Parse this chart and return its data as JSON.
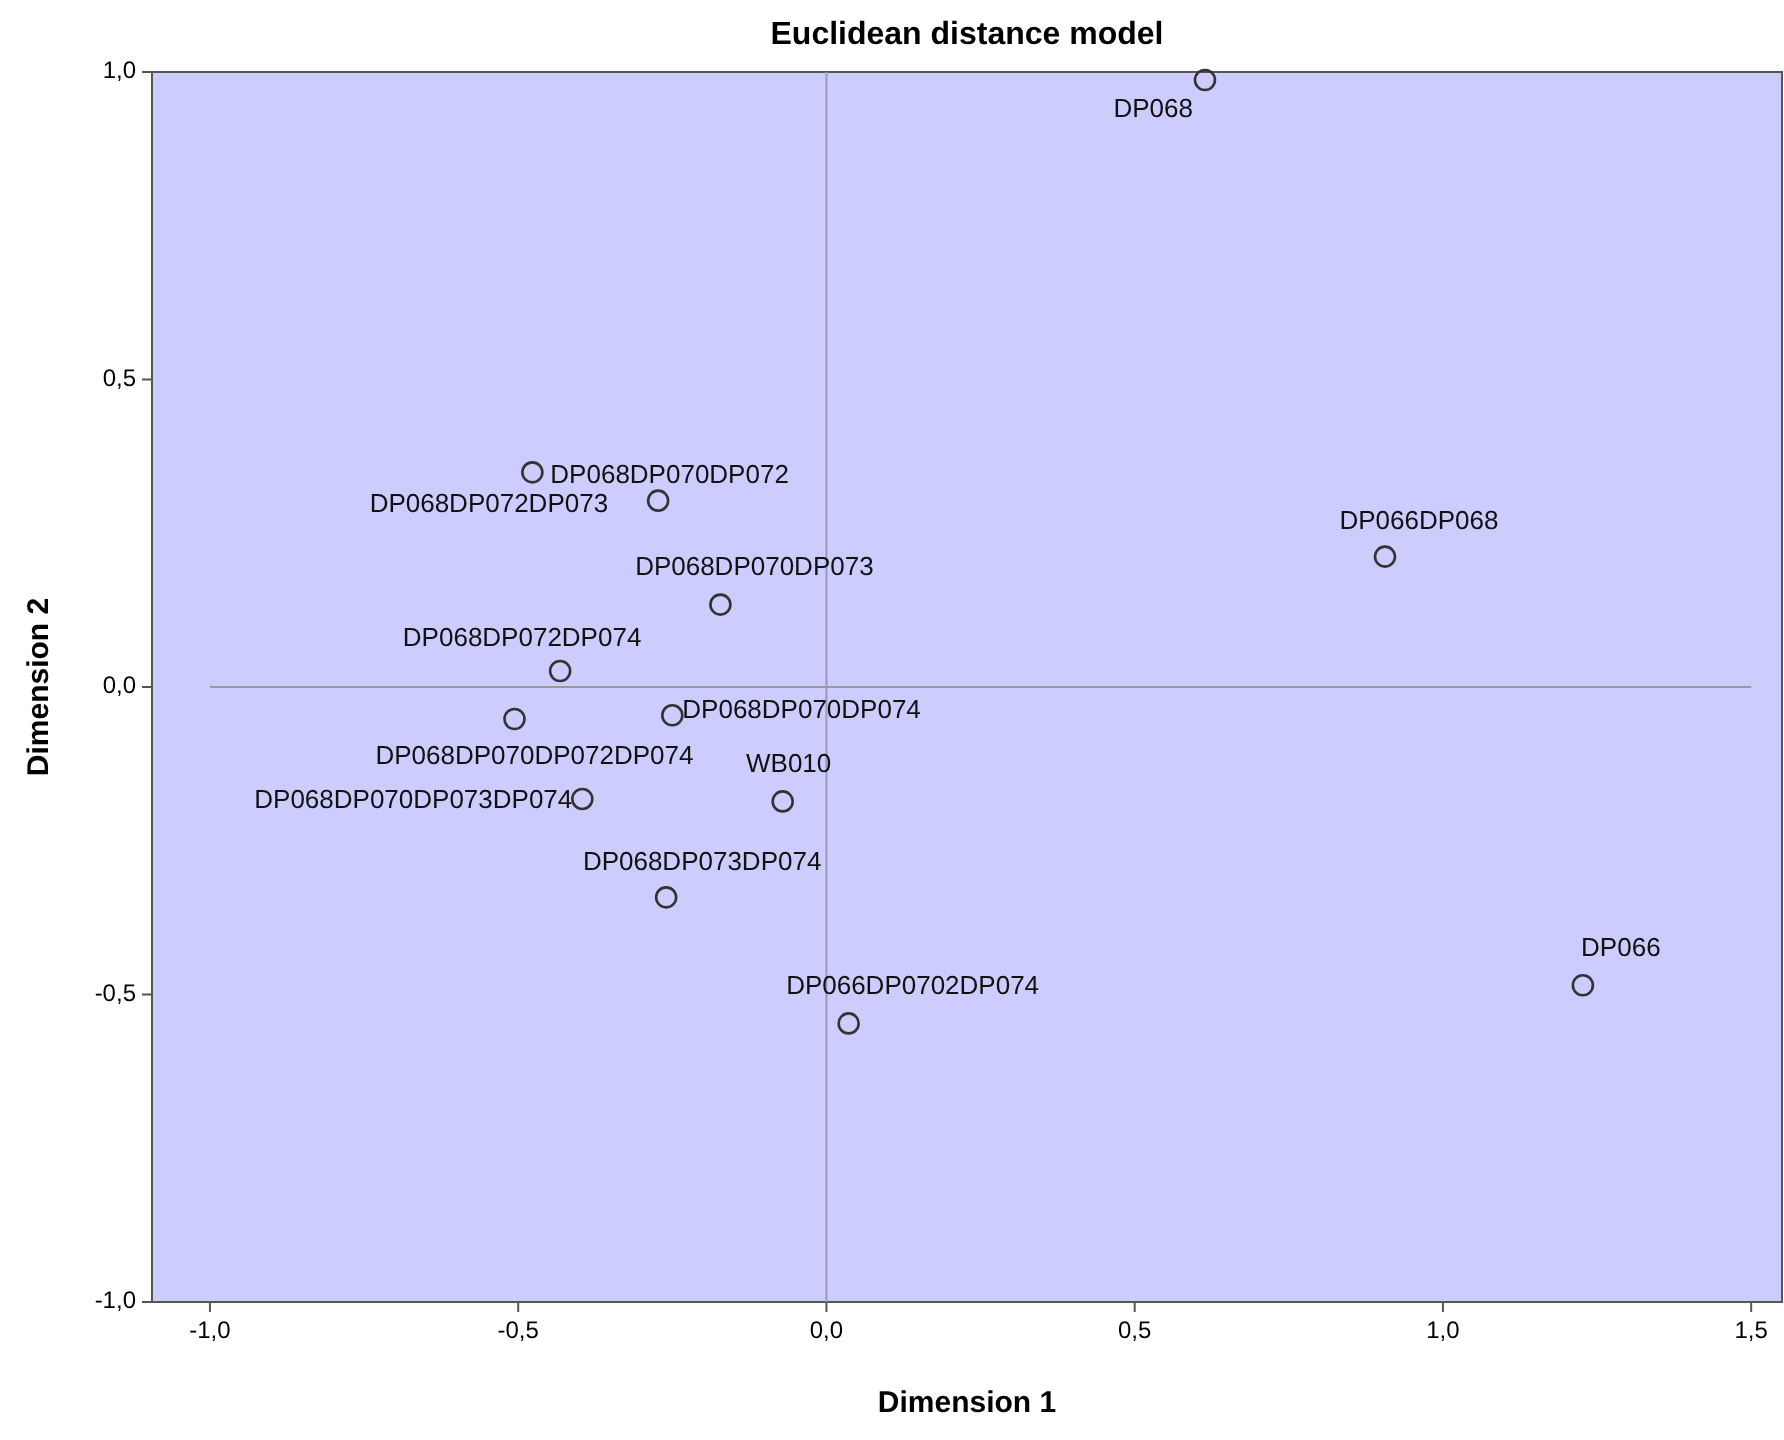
{
  "chart_data": {
    "type": "scatter",
    "title": "Euclidean distance model",
    "xlabel": "Dimension 1",
    "ylabel": "Dimension 2",
    "xlim": [
      -1.094,
      1.55
    ],
    "ylim": [
      -1,
      1
    ],
    "xticks": [
      {
        "value": -1,
        "label": "-1,0"
      },
      {
        "value": -0.5,
        "label": "-0,5"
      },
      {
        "value": 0,
        "label": "0,0"
      },
      {
        "value": 0.5,
        "label": "0,5"
      },
      {
        "value": 1,
        "label": "1,0"
      },
      {
        "value": 1.5,
        "label": "1,5"
      }
    ],
    "yticks": [
      {
        "value": -1,
        "label": "-1,0"
      },
      {
        "value": -0.5,
        "label": "-0,5"
      },
      {
        "value": 0,
        "label": "0,0"
      },
      {
        "value": 0.5,
        "label": "0,5"
      },
      {
        "value": 1,
        "label": "1,0"
      }
    ],
    "marker": "circle",
    "series": [
      {
        "color": "#333333",
        "x": [
          0.614,
          -0.477,
          -0.273,
          0.906,
          -0.172,
          -0.432,
          -0.25,
          -0.506,
          -0.396,
          -0.071,
          -0.26,
          0.036,
          1.227
        ],
        "values": [
          0.987,
          0.349,
          0.303,
          0.212,
          0.134,
          0.026,
          -0.046,
          -0.052,
          -0.182,
          -0.186,
          -0.342,
          -0.547,
          -0.485
        ]
      }
    ],
    "ref_lines": [
      {
        "axis": "x",
        "value": 0,
        "color": "#9999bb"
      },
      {
        "axis": "y",
        "value": 0,
        "color": "#999999"
      }
    ],
    "annotations": [
      {
        "text": "DP068",
        "x": 0.614,
        "y": 0.987
      },
      {
        "text": "DP068DP070DP072",
        "x": -0.477,
        "y": 0.349
      },
      {
        "text": "DP068DP072DP073",
        "x": -0.273,
        "y": 0.303
      },
      {
        "text": "DP066DP068",
        "x": 0.906,
        "y": 0.212
      },
      {
        "text": "DP068DP070DP073",
        "x": -0.172,
        "y": 0.134
      },
      {
        "text": "DP068DP072DP074",
        "x": -0.432,
        "y": 0.026
      },
      {
        "text": "DP068DP070DP074",
        "x": -0.25,
        "y": -0.046
      },
      {
        "text": "DP068DP070DP072DP074",
        "x": -0.506,
        "y": -0.052
      },
      {
        "text": "DP068DP070DP073DP074",
        "x": -0.396,
        "y": -0.182
      },
      {
        "text": "WB010",
        "x": -0.071,
        "y": -0.186
      },
      {
        "text": "DP068DP073DP074",
        "x": -0.26,
        "y": -0.342
      },
      {
        "text": "DP066DP0702DP074",
        "x": 0.036,
        "y": -0.547
      },
      {
        "text": "DP066",
        "x": 1.227,
        "y": -0.485
      }
    ]
  }
}
